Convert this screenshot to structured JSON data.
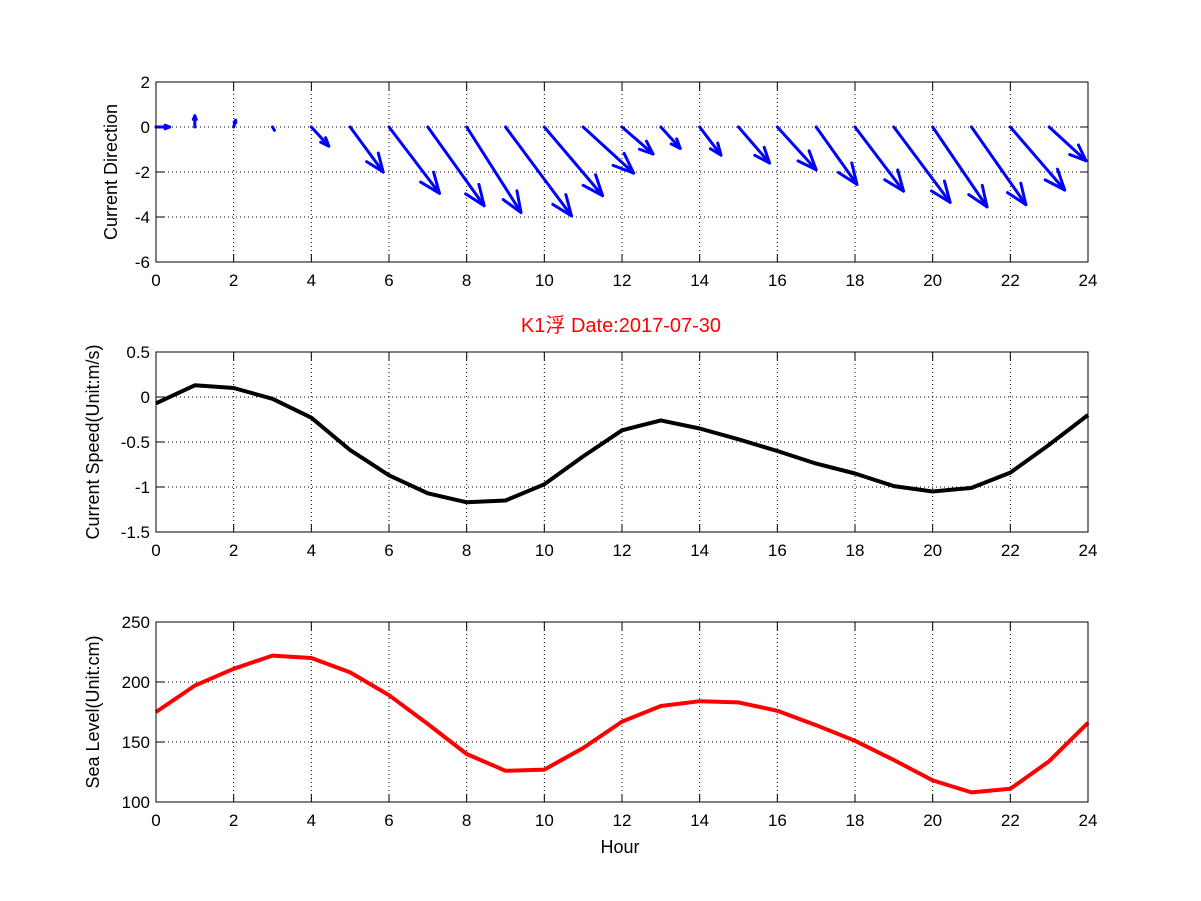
{
  "figure": {
    "background": "#ffffff"
  },
  "chart_data": [
    {
      "type": "quiver",
      "title": "",
      "xlabel": "",
      "ylabel": "Current Direction",
      "xlim": [
        0,
        24
      ],
      "ylim": [
        -6,
        2
      ],
      "xticks": [
        0,
        2,
        4,
        6,
        8,
        10,
        12,
        14,
        16,
        18,
        20,
        22,
        24
      ],
      "yticks": [
        2,
        0,
        -2,
        -4,
        -6
      ],
      "grid": true,
      "color": "#0000ff",
      "arrows": [
        {
          "x": 0,
          "u": 0.35,
          "v": 0.0
        },
        {
          "x": 1,
          "u": 0.0,
          "v": 0.5
        },
        {
          "x": 2,
          "u": 0.05,
          "v": 0.3
        },
        {
          "x": 3,
          "u": 0.05,
          "v": -0.15
        },
        {
          "x": 4,
          "u": 0.45,
          "v": -0.85
        },
        {
          "x": 5,
          "u": 0.85,
          "v": -2.0
        },
        {
          "x": 6,
          "u": 1.3,
          "v": -2.95
        },
        {
          "x": 7,
          "u": 1.45,
          "v": -3.5
        },
        {
          "x": 8,
          "u": 1.4,
          "v": -3.8
        },
        {
          "x": 9,
          "u": 1.7,
          "v": -3.95
        },
        {
          "x": 10,
          "u": 1.5,
          "v": -3.05
        },
        {
          "x": 11,
          "u": 1.3,
          "v": -2.05
        },
        {
          "x": 12,
          "u": 0.8,
          "v": -1.2
        },
        {
          "x": 13,
          "u": 0.5,
          "v": -0.95
        },
        {
          "x": 14,
          "u": 0.55,
          "v": -1.25
        },
        {
          "x": 15,
          "u": 0.8,
          "v": -1.6
        },
        {
          "x": 16,
          "u": 1.0,
          "v": -1.9
        },
        {
          "x": 17,
          "u": 1.05,
          "v": -2.55
        },
        {
          "x": 18,
          "u": 1.25,
          "v": -2.85
        },
        {
          "x": 19,
          "u": 1.45,
          "v": -3.35
        },
        {
          "x": 20,
          "u": 1.4,
          "v": -3.55
        },
        {
          "x": 21,
          "u": 1.4,
          "v": -3.45
        },
        {
          "x": 22,
          "u": 1.4,
          "v": -2.8
        },
        {
          "x": 23,
          "u": 0.95,
          "v": -1.5
        }
      ]
    },
    {
      "type": "line",
      "title": "K1浮    Date:2017-07-30",
      "xlabel": "",
      "ylabel": "Current Speed(Unit:m/s)",
      "xlim": [
        0,
        24
      ],
      "ylim": [
        -1.5,
        0.5
      ],
      "xticks": [
        0,
        2,
        4,
        6,
        8,
        10,
        12,
        14,
        16,
        18,
        20,
        22,
        24
      ],
      "yticks": [
        0.5,
        0,
        -0.5,
        -1,
        -1.5
      ],
      "grid": true,
      "color": "#000000",
      "x": [
        0,
        1,
        2,
        3,
        4,
        5,
        6,
        7,
        8,
        9,
        10,
        11,
        12,
        13,
        14,
        15,
        16,
        17,
        18,
        19,
        20,
        21,
        22,
        23,
        24
      ],
      "y": [
        -0.07,
        0.13,
        0.1,
        -0.02,
        -0.23,
        -0.59,
        -0.87,
        -1.07,
        -1.17,
        -1.15,
        -0.97,
        -0.66,
        -0.37,
        -0.26,
        -0.35,
        -0.47,
        -0.6,
        -0.74,
        -0.85,
        -0.99,
        -1.05,
        -1.01,
        -0.84,
        -0.53,
        -0.2
      ]
    },
    {
      "type": "line",
      "title": "",
      "xlabel": "Hour",
      "ylabel": "Sea Level(Unit:cm)",
      "xlim": [
        0,
        24
      ],
      "ylim": [
        100,
        250
      ],
      "xticks": [
        0,
        2,
        4,
        6,
        8,
        10,
        12,
        14,
        16,
        18,
        20,
        22,
        24
      ],
      "yticks": [
        250,
        200,
        150,
        100
      ],
      "grid": true,
      "color": "#ff0000",
      "x": [
        0,
        1,
        2,
        3,
        4,
        5,
        6,
        7,
        8,
        9,
        10,
        11,
        12,
        13,
        14,
        15,
        16,
        17,
        18,
        19,
        20,
        21,
        22,
        23,
        24
      ],
      "y": [
        175,
        197,
        211,
        222,
        220,
        208,
        189,
        165,
        140,
        126,
        127,
        145,
        167,
        180,
        184,
        183,
        176,
        164,
        151,
        135,
        118,
        108,
        111,
        134,
        166
      ]
    }
  ]
}
